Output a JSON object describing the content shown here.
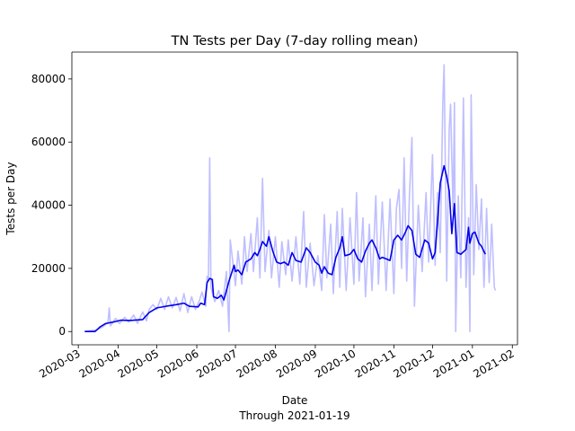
{
  "chart_data": {
    "type": "line",
    "title": "TN Tests per Day (7-day rolling mean)",
    "xlabel": "Date",
    "xlabel_sub": "Through 2021-01-19",
    "ylabel": "Tests per Day",
    "xlim": [
      "2020-02-25",
      "2021-02-05"
    ],
    "ylim": [
      -4200,
      88500
    ],
    "x_ticks": [
      "2020-03-01",
      "2020-04-01",
      "2020-05-01",
      "2020-06-01",
      "2020-07-01",
      "2020-08-01",
      "2020-09-01",
      "2020-10-01",
      "2020-11-01",
      "2020-12-01",
      "2021-01-01",
      "2021-02-01"
    ],
    "x_tick_labels": [
      "2020-03",
      "2020-04",
      "2020-05",
      "2020-06",
      "2020-07",
      "2020-08",
      "2020-09",
      "2020-10",
      "2020-11",
      "2020-12",
      "2021-01",
      "2021-02"
    ],
    "y_ticks": [
      0,
      20000,
      40000,
      60000,
      80000
    ],
    "y_tick_labels": [
      "0",
      "20000",
      "40000",
      "60000",
      "80000"
    ],
    "grid": false,
    "legend": "none",
    "colors": {
      "daily": "#bfbfff",
      "rolling": "#0000ee",
      "axes": "#000000"
    },
    "series": [
      {
        "role": "daily",
        "points": [
          [
            "2020-03-06",
            0
          ],
          [
            "2020-03-15",
            500
          ],
          [
            "2020-03-20",
            1500
          ],
          [
            "2020-03-24",
            2800
          ],
          [
            "2020-03-25",
            7500
          ],
          [
            "2020-03-26",
            1800
          ],
          [
            "2020-03-30",
            4200
          ],
          [
            "2020-04-02",
            2500
          ],
          [
            "2020-04-06",
            4500
          ],
          [
            "2020-04-09",
            3000
          ],
          [
            "2020-04-13",
            5200
          ],
          [
            "2020-04-16",
            2600
          ],
          [
            "2020-04-20",
            6200
          ],
          [
            "2020-04-23",
            3400
          ],
          [
            "2020-04-25",
            7000
          ],
          [
            "2020-04-28",
            8500
          ],
          [
            "2020-05-01",
            7000
          ],
          [
            "2020-05-04",
            10500
          ],
          [
            "2020-05-07",
            7000
          ],
          [
            "2020-05-10",
            11000
          ],
          [
            "2020-05-13",
            7500
          ],
          [
            "2020-05-16",
            10800
          ],
          [
            "2020-05-19",
            6500
          ],
          [
            "2020-05-22",
            12000
          ],
          [
            "2020-05-25",
            6000
          ],
          [
            "2020-05-28",
            11000
          ],
          [
            "2020-05-31",
            7000
          ],
          [
            "2020-06-03",
            9800
          ],
          [
            "2020-06-05",
            12500
          ],
          [
            "2020-06-08",
            8000
          ],
          [
            "2020-06-09",
            17500
          ],
          [
            "2020-06-10",
            16000
          ],
          [
            "2020-06-11",
            55000
          ],
          [
            "2020-06-12",
            14000
          ],
          [
            "2020-06-15",
            9500
          ],
          [
            "2020-06-18",
            13000
          ],
          [
            "2020-06-21",
            8000
          ],
          [
            "2020-06-24",
            19000
          ],
          [
            "2020-06-26",
            0
          ],
          [
            "2020-06-27",
            29000
          ],
          [
            "2020-07-01",
            14500
          ],
          [
            "2020-07-03",
            25500
          ],
          [
            "2020-07-06",
            15000
          ],
          [
            "2020-07-08",
            30000
          ],
          [
            "2020-07-10",
            19000
          ],
          [
            "2020-07-13",
            31000
          ],
          [
            "2020-07-15",
            19000
          ],
          [
            "2020-07-18",
            36000
          ],
          [
            "2020-07-20",
            17000
          ],
          [
            "2020-07-22",
            48500
          ],
          [
            "2020-07-24",
            19000
          ],
          [
            "2020-07-27",
            32000
          ],
          [
            "2020-07-29",
            17000
          ],
          [
            "2020-08-01",
            30000
          ],
          [
            "2020-08-04",
            14000
          ],
          [
            "2020-08-06",
            28500
          ],
          [
            "2020-08-09",
            18000
          ],
          [
            "2020-08-11",
            29000
          ],
          [
            "2020-08-14",
            16000
          ],
          [
            "2020-08-17",
            30000
          ],
          [
            "2020-08-20",
            15000
          ],
          [
            "2020-08-23",
            38000
          ],
          [
            "2020-08-25",
            14000
          ],
          [
            "2020-08-28",
            28000
          ],
          [
            "2020-08-31",
            14500
          ],
          [
            "2020-09-03",
            24000
          ],
          [
            "2020-09-06",
            13000
          ],
          [
            "2020-09-08",
            37000
          ],
          [
            "2020-09-10",
            17000
          ],
          [
            "2020-09-13",
            34000
          ],
          [
            "2020-09-15",
            12000
          ],
          [
            "2020-09-18",
            38000
          ],
          [
            "2020-09-20",
            14000
          ],
          [
            "2020-09-22",
            39000
          ],
          [
            "2020-09-25",
            13000
          ],
          [
            "2020-09-28",
            36000
          ],
          [
            "2020-10-01",
            15000
          ],
          [
            "2020-10-03",
            44000
          ],
          [
            "2020-10-05",
            16000
          ],
          [
            "2020-10-08",
            36000
          ],
          [
            "2020-10-10",
            11000
          ],
          [
            "2020-10-13",
            34000
          ],
          [
            "2020-10-15",
            13000
          ],
          [
            "2020-10-18",
            43000
          ],
          [
            "2020-10-20",
            15000
          ],
          [
            "2020-10-23",
            41000
          ],
          [
            "2020-10-26",
            13000
          ],
          [
            "2020-10-29",
            42000
          ],
          [
            "2020-11-01",
            12000
          ],
          [
            "2020-11-03",
            39000
          ],
          [
            "2020-11-05",
            45000
          ],
          [
            "2020-11-07",
            20000
          ],
          [
            "2020-11-09",
            55000
          ],
          [
            "2020-11-11",
            16000
          ],
          [
            "2020-11-13",
            42000
          ],
          [
            "2020-11-15",
            61500
          ],
          [
            "2020-11-17",
            8000
          ],
          [
            "2020-11-20",
            40000
          ],
          [
            "2020-11-23",
            19000
          ],
          [
            "2020-11-26",
            44000
          ],
          [
            "2020-11-28",
            22000
          ],
          [
            "2020-12-01",
            56000
          ],
          [
            "2020-12-03",
            21000
          ],
          [
            "2020-12-05",
            44000
          ],
          [
            "2020-12-07",
            25000
          ],
          [
            "2020-12-09",
            73000
          ],
          [
            "2020-12-10",
            84500
          ],
          [
            "2020-12-12",
            16000
          ],
          [
            "2020-12-14",
            64000
          ],
          [
            "2020-12-15",
            72000
          ],
          [
            "2020-12-17",
            38000
          ],
          [
            "2020-12-18",
            72500
          ],
          [
            "2020-12-19",
            0
          ],
          [
            "2020-12-21",
            43000
          ],
          [
            "2020-12-23",
            17000
          ],
          [
            "2020-12-25",
            74000
          ],
          [
            "2020-12-27",
            14000
          ],
          [
            "2020-12-29",
            36000
          ],
          [
            "2020-12-30",
            0
          ],
          [
            "2020-12-31",
            75000
          ],
          [
            "2021-01-02",
            18000
          ],
          [
            "2021-01-04",
            46500
          ],
          [
            "2021-01-06",
            26000
          ],
          [
            "2021-01-08",
            42000
          ],
          [
            "2021-01-10",
            14000
          ],
          [
            "2021-01-12",
            39000
          ],
          [
            "2021-01-14",
            15500
          ],
          [
            "2021-01-16",
            34000
          ],
          [
            "2021-01-18",
            14000
          ],
          [
            "2021-01-19",
            13000
          ]
        ]
      },
      {
        "role": "rolling",
        "points": [
          [
            "2020-03-06",
            0
          ],
          [
            "2020-03-14",
            0
          ],
          [
            "2020-03-18",
            1500
          ],
          [
            "2020-03-22",
            2500
          ],
          [
            "2020-03-28",
            3000
          ],
          [
            "2020-04-03",
            3600
          ],
          [
            "2020-04-10",
            3500
          ],
          [
            "2020-04-17",
            3700
          ],
          [
            "2020-04-20",
            3800
          ],
          [
            "2020-04-25",
            6000
          ],
          [
            "2020-05-01",
            7500
          ],
          [
            "2020-05-08",
            8000
          ],
          [
            "2020-05-16",
            8500
          ],
          [
            "2020-05-22",
            9000
          ],
          [
            "2020-05-26",
            8000
          ],
          [
            "2020-06-02",
            7800
          ],
          [
            "2020-06-04",
            9000
          ],
          [
            "2020-06-07",
            8500
          ],
          [
            "2020-06-09",
            15500
          ],
          [
            "2020-06-11",
            16800
          ],
          [
            "2020-06-13",
            16500
          ],
          [
            "2020-06-14",
            11000
          ],
          [
            "2020-06-17",
            10500
          ],
          [
            "2020-06-20",
            11500
          ],
          [
            "2020-06-22",
            10000
          ],
          [
            "2020-06-26",
            16000
          ],
          [
            "2020-06-30",
            21000
          ],
          [
            "2020-07-01",
            19000
          ],
          [
            "2020-07-03",
            19500
          ],
          [
            "2020-07-06",
            18000
          ],
          [
            "2020-07-09",
            22000
          ],
          [
            "2020-07-13",
            23000
          ],
          [
            "2020-07-16",
            25000
          ],
          [
            "2020-07-18",
            24000
          ],
          [
            "2020-07-20",
            26000
          ],
          [
            "2020-07-22",
            28500
          ],
          [
            "2020-07-25",
            27000
          ],
          [
            "2020-07-27",
            30000
          ],
          [
            "2020-07-30",
            25500
          ],
          [
            "2020-08-02",
            22000
          ],
          [
            "2020-08-05",
            21500
          ],
          [
            "2020-08-08",
            22000
          ],
          [
            "2020-08-11",
            21000
          ],
          [
            "2020-08-14",
            25000
          ],
          [
            "2020-08-17",
            22500
          ],
          [
            "2020-08-21",
            22000
          ],
          [
            "2020-08-25",
            26500
          ],
          [
            "2020-08-28",
            25000
          ],
          [
            "2020-09-01",
            22000
          ],
          [
            "2020-09-04",
            21000
          ],
          [
            "2020-09-06",
            18500
          ],
          [
            "2020-09-08",
            20500
          ],
          [
            "2020-09-11",
            18500
          ],
          [
            "2020-09-14",
            18000
          ],
          [
            "2020-09-17",
            23500
          ],
          [
            "2020-09-20",
            26500
          ],
          [
            "2020-09-22",
            30000
          ],
          [
            "2020-09-24",
            24000
          ],
          [
            "2020-09-28",
            24500
          ],
          [
            "2020-10-01",
            26000
          ],
          [
            "2020-10-04",
            23000
          ],
          [
            "2020-10-07",
            22000
          ],
          [
            "2020-10-10",
            25500
          ],
          [
            "2020-10-13",
            28000
          ],
          [
            "2020-10-15",
            29000
          ],
          [
            "2020-10-18",
            26500
          ],
          [
            "2020-10-21",
            23000
          ],
          [
            "2020-10-23",
            23500
          ],
          [
            "2020-10-26",
            23000
          ],
          [
            "2020-10-29",
            22500
          ],
          [
            "2020-11-01",
            29000
          ],
          [
            "2020-11-04",
            30500
          ],
          [
            "2020-11-07",
            29000
          ],
          [
            "2020-11-10",
            31500
          ],
          [
            "2020-11-12",
            33500
          ],
          [
            "2020-11-15",
            32000
          ],
          [
            "2020-11-18",
            24500
          ],
          [
            "2020-11-21",
            23500
          ],
          [
            "2020-11-25",
            29000
          ],
          [
            "2020-11-28",
            28000
          ],
          [
            "2020-12-01",
            23000
          ],
          [
            "2020-12-03",
            25000
          ],
          [
            "2020-12-05",
            35000
          ],
          [
            "2020-12-07",
            47000
          ],
          [
            "2020-12-10",
            52500
          ],
          [
            "2020-12-12",
            49000
          ],
          [
            "2020-12-14",
            44500
          ],
          [
            "2020-12-16",
            31000
          ],
          [
            "2020-12-18",
            40500
          ],
          [
            "2020-12-20",
            25000
          ],
          [
            "2020-12-23",
            24500
          ],
          [
            "2020-12-27",
            26000
          ],
          [
            "2020-12-29",
            33000
          ],
          [
            "2020-12-30",
            28000
          ],
          [
            "2021-01-01",
            31000
          ],
          [
            "2021-01-03",
            31500
          ],
          [
            "2021-01-06",
            28000
          ],
          [
            "2021-01-08",
            27000
          ],
          [
            "2021-01-11",
            24500
          ]
        ]
      }
    ]
  }
}
